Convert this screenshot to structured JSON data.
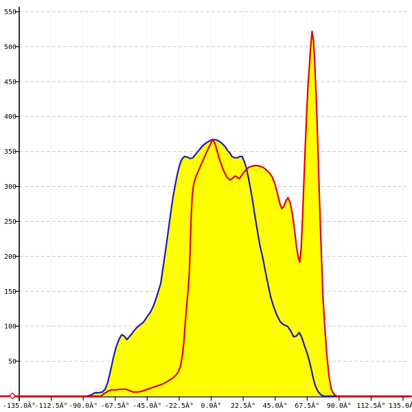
{
  "page": {
    "background": "#ffffff"
  },
  "style": {
    "axis_color": "#000000",
    "grid_color_horizontal": "#c6c6c6",
    "grid_color_vertical": "#cfcfcf",
    "tick_font_size": 10
  },
  "chart_data": {
    "type": "area",
    "title": "",
    "xlabel": "",
    "ylabel": "",
    "xlim": [
      -135,
      135
    ],
    "ylim": [
      0,
      550
    ],
    "grid": true,
    "legend": "none",
    "x_ticks": [
      {
        "value": -135,
        "label": "-135.0Â°"
      },
      {
        "value": -112.5,
        "label": "-112.5Â°"
      },
      {
        "value": -90,
        "label": "-90.0Â°"
      },
      {
        "value": -67.5,
        "label": "-67.5Â°"
      },
      {
        "value": -45,
        "label": "-45.0Â°"
      },
      {
        "value": -22.5,
        "label": "-22.5Â°"
      },
      {
        "value": 0,
        "label": "0.0Â°"
      },
      {
        "value": 22.5,
        "label": "22.5Â°"
      },
      {
        "value": 45,
        "label": "45.0Â°"
      },
      {
        "value": 67.5,
        "label": "67.5Â°"
      },
      {
        "value": 90,
        "label": "90.0Â°"
      },
      {
        "value": 112.5,
        "label": "112.5Â°"
      },
      {
        "value": 135,
        "label": "135.0Â°"
      }
    ],
    "y_ticks": [
      50,
      100,
      150,
      200,
      250,
      300,
      350,
      400,
      450,
      500,
      550
    ],
    "start_marker": {
      "shape": "diamond",
      "color": "#e00000",
      "fill": "#ffffff",
      "position_deg": -139.8,
      "value": 0
    },
    "series": [
      {
        "name": "blue",
        "line_color": "#1a1ab8",
        "fill_color": "#ffff00",
        "line_width": 2.2,
        "baseline_extends_plot_width": true,
        "points": [
          [
            -87.6,
            0
          ],
          [
            -84.2,
            2
          ],
          [
            -81.8,
            5
          ],
          [
            -78.9,
            5
          ],
          [
            -76.5,
            6
          ],
          [
            -74.6,
            10
          ],
          [
            -72.7,
            20
          ],
          [
            -70.7,
            37
          ],
          [
            -68.8,
            55
          ],
          [
            -66.9,
            70
          ],
          [
            -64.9,
            81
          ],
          [
            -63.0,
            88
          ],
          [
            -61.1,
            86
          ],
          [
            -59.2,
            81
          ],
          [
            -57.2,
            86
          ],
          [
            -54.8,
            92
          ],
          [
            -52.4,
            98
          ],
          [
            -50.0,
            102
          ],
          [
            -47.6,
            106
          ],
          [
            -45.2,
            113
          ],
          [
            -42.8,
            120
          ],
          [
            -40.4,
            130
          ],
          [
            -37.9,
            145
          ],
          [
            -35.5,
            161
          ],
          [
            -33.1,
            194
          ],
          [
            -30.7,
            228
          ],
          [
            -28.8,
            257
          ],
          [
            -26.9,
            284
          ],
          [
            -24.9,
            306
          ],
          [
            -23.5,
            320
          ],
          [
            -22.0,
            332
          ],
          [
            -20.6,
            339
          ],
          [
            -18.7,
            343
          ],
          [
            -16.7,
            342
          ],
          [
            -14.8,
            340
          ],
          [
            -12.9,
            341
          ],
          [
            -10.9,
            346
          ],
          [
            -8.5,
            352
          ],
          [
            -6.1,
            358
          ],
          [
            -3.7,
            362
          ],
          [
            -1.3,
            365
          ],
          [
            0.6,
            367
          ],
          [
            3.0,
            367
          ],
          [
            5.4,
            365
          ],
          [
            7.4,
            362
          ],
          [
            9.8,
            357
          ],
          [
            11.7,
            351
          ],
          [
            13.2,
            348
          ],
          [
            14.6,
            343
          ],
          [
            16.5,
            341
          ],
          [
            18.5,
            341
          ],
          [
            20.4,
            343
          ],
          [
            21.8,
            343
          ],
          [
            23.3,
            336
          ],
          [
            24.7,
            327
          ],
          [
            26.2,
            313
          ],
          [
            27.6,
            298
          ],
          [
            29.1,
            281
          ],
          [
            30.5,
            262
          ],
          [
            32.4,
            238
          ],
          [
            34.4,
            215
          ],
          [
            36.3,
            198
          ],
          [
            38.2,
            178
          ],
          [
            40.2,
            158
          ],
          [
            42.1,
            140
          ],
          [
            44.0,
            128
          ],
          [
            46.4,
            115
          ],
          [
            48.8,
            106
          ],
          [
            51.2,
            102
          ],
          [
            53.7,
            100
          ],
          [
            56.1,
            93
          ],
          [
            58.0,
            85
          ],
          [
            59.9,
            86
          ],
          [
            61.9,
            91
          ],
          [
            63.8,
            84
          ],
          [
            65.7,
            72
          ],
          [
            67.7,
            60
          ],
          [
            69.1,
            50
          ],
          [
            70.5,
            38
          ],
          [
            72.0,
            24
          ],
          [
            73.4,
            14
          ],
          [
            75.4,
            6
          ],
          [
            77.3,
            2
          ],
          [
            79.2,
            0
          ]
        ]
      },
      {
        "name": "red",
        "line_color": "#e00000",
        "fill_color": "#ffff00",
        "line_width": 2.2,
        "baseline_extends_plot_width": true,
        "points": [
          [
            -77.5,
            0
          ],
          [
            -75.1,
            4
          ],
          [
            -72.7,
            7
          ],
          [
            -70.3,
            9
          ],
          [
            -66.9,
            9
          ],
          [
            -63.5,
            10
          ],
          [
            -60.1,
            10
          ],
          [
            -57.2,
            8
          ],
          [
            -54.8,
            6
          ],
          [
            -51.9,
            6
          ],
          [
            -49.0,
            7
          ],
          [
            -46.1,
            9
          ],
          [
            -43.3,
            11
          ],
          [
            -40.4,
            13
          ],
          [
            -37.5,
            15
          ],
          [
            -34.6,
            17
          ],
          [
            -31.7,
            20
          ],
          [
            -29.3,
            23
          ],
          [
            -26.9,
            26
          ],
          [
            -24.9,
            30
          ],
          [
            -23.0,
            35
          ],
          [
            -21.6,
            43
          ],
          [
            -20.1,
            60
          ],
          [
            -19.1,
            80
          ],
          [
            -18.2,
            105
          ],
          [
            -17.2,
            130
          ],
          [
            -16.2,
            152
          ],
          [
            -15.3,
            178
          ],
          [
            -14.8,
            210
          ],
          [
            -14.3,
            245
          ],
          [
            -13.4,
            285
          ],
          [
            -12.4,
            302
          ],
          [
            -10.9,
            313
          ],
          [
            -9.0,
            322
          ],
          [
            -7.1,
            331
          ],
          [
            -4.7,
            342
          ],
          [
            -2.3,
            353
          ],
          [
            -0.3,
            361
          ],
          [
            1.1,
            367
          ],
          [
            2.6,
            362
          ],
          [
            4.0,
            352
          ],
          [
            5.4,
            342
          ],
          [
            7.4,
            330
          ],
          [
            9.3,
            320
          ],
          [
            11.2,
            313
          ],
          [
            13.2,
            309
          ],
          [
            15.1,
            312
          ],
          [
            17.0,
            315
          ],
          [
            18.5,
            313
          ],
          [
            19.9,
            311
          ],
          [
            21.8,
            317
          ],
          [
            23.7,
            322
          ],
          [
            26.2,
            327
          ],
          [
            28.6,
            329
          ],
          [
            31.5,
            330
          ],
          [
            34.4,
            329
          ],
          [
            36.8,
            327
          ],
          [
            39.2,
            323
          ],
          [
            41.1,
            319
          ],
          [
            43.1,
            313
          ],
          [
            45.0,
            303
          ],
          [
            46.9,
            288
          ],
          [
            48.4,
            275
          ],
          [
            49.8,
            268
          ],
          [
            51.2,
            272
          ],
          [
            52.7,
            280
          ],
          [
            54.1,
            284
          ],
          [
            55.6,
            277
          ],
          [
            57.0,
            262
          ],
          [
            58.5,
            241
          ],
          [
            59.9,
            216
          ],
          [
            61.4,
            197
          ],
          [
            62.3,
            192
          ],
          [
            63.3,
            212
          ],
          [
            64.3,
            255
          ],
          [
            65.2,
            305
          ],
          [
            66.2,
            358
          ],
          [
            67.2,
            405
          ],
          [
            68.1,
            443
          ],
          [
            69.1,
            472
          ],
          [
            70.0,
            500
          ],
          [
            71.0,
            522
          ],
          [
            72.0,
            508
          ],
          [
            72.9,
            476
          ],
          [
            73.9,
            428
          ],
          [
            74.9,
            368
          ],
          [
            75.8,
            308
          ],
          [
            76.8,
            246
          ],
          [
            77.8,
            188
          ],
          [
            78.7,
            140
          ],
          [
            80.2,
            92
          ],
          [
            81.6,
            54
          ],
          [
            83.1,
            26
          ],
          [
            84.5,
            10
          ],
          [
            86.4,
            3
          ],
          [
            88.4,
            0
          ]
        ]
      }
    ]
  }
}
